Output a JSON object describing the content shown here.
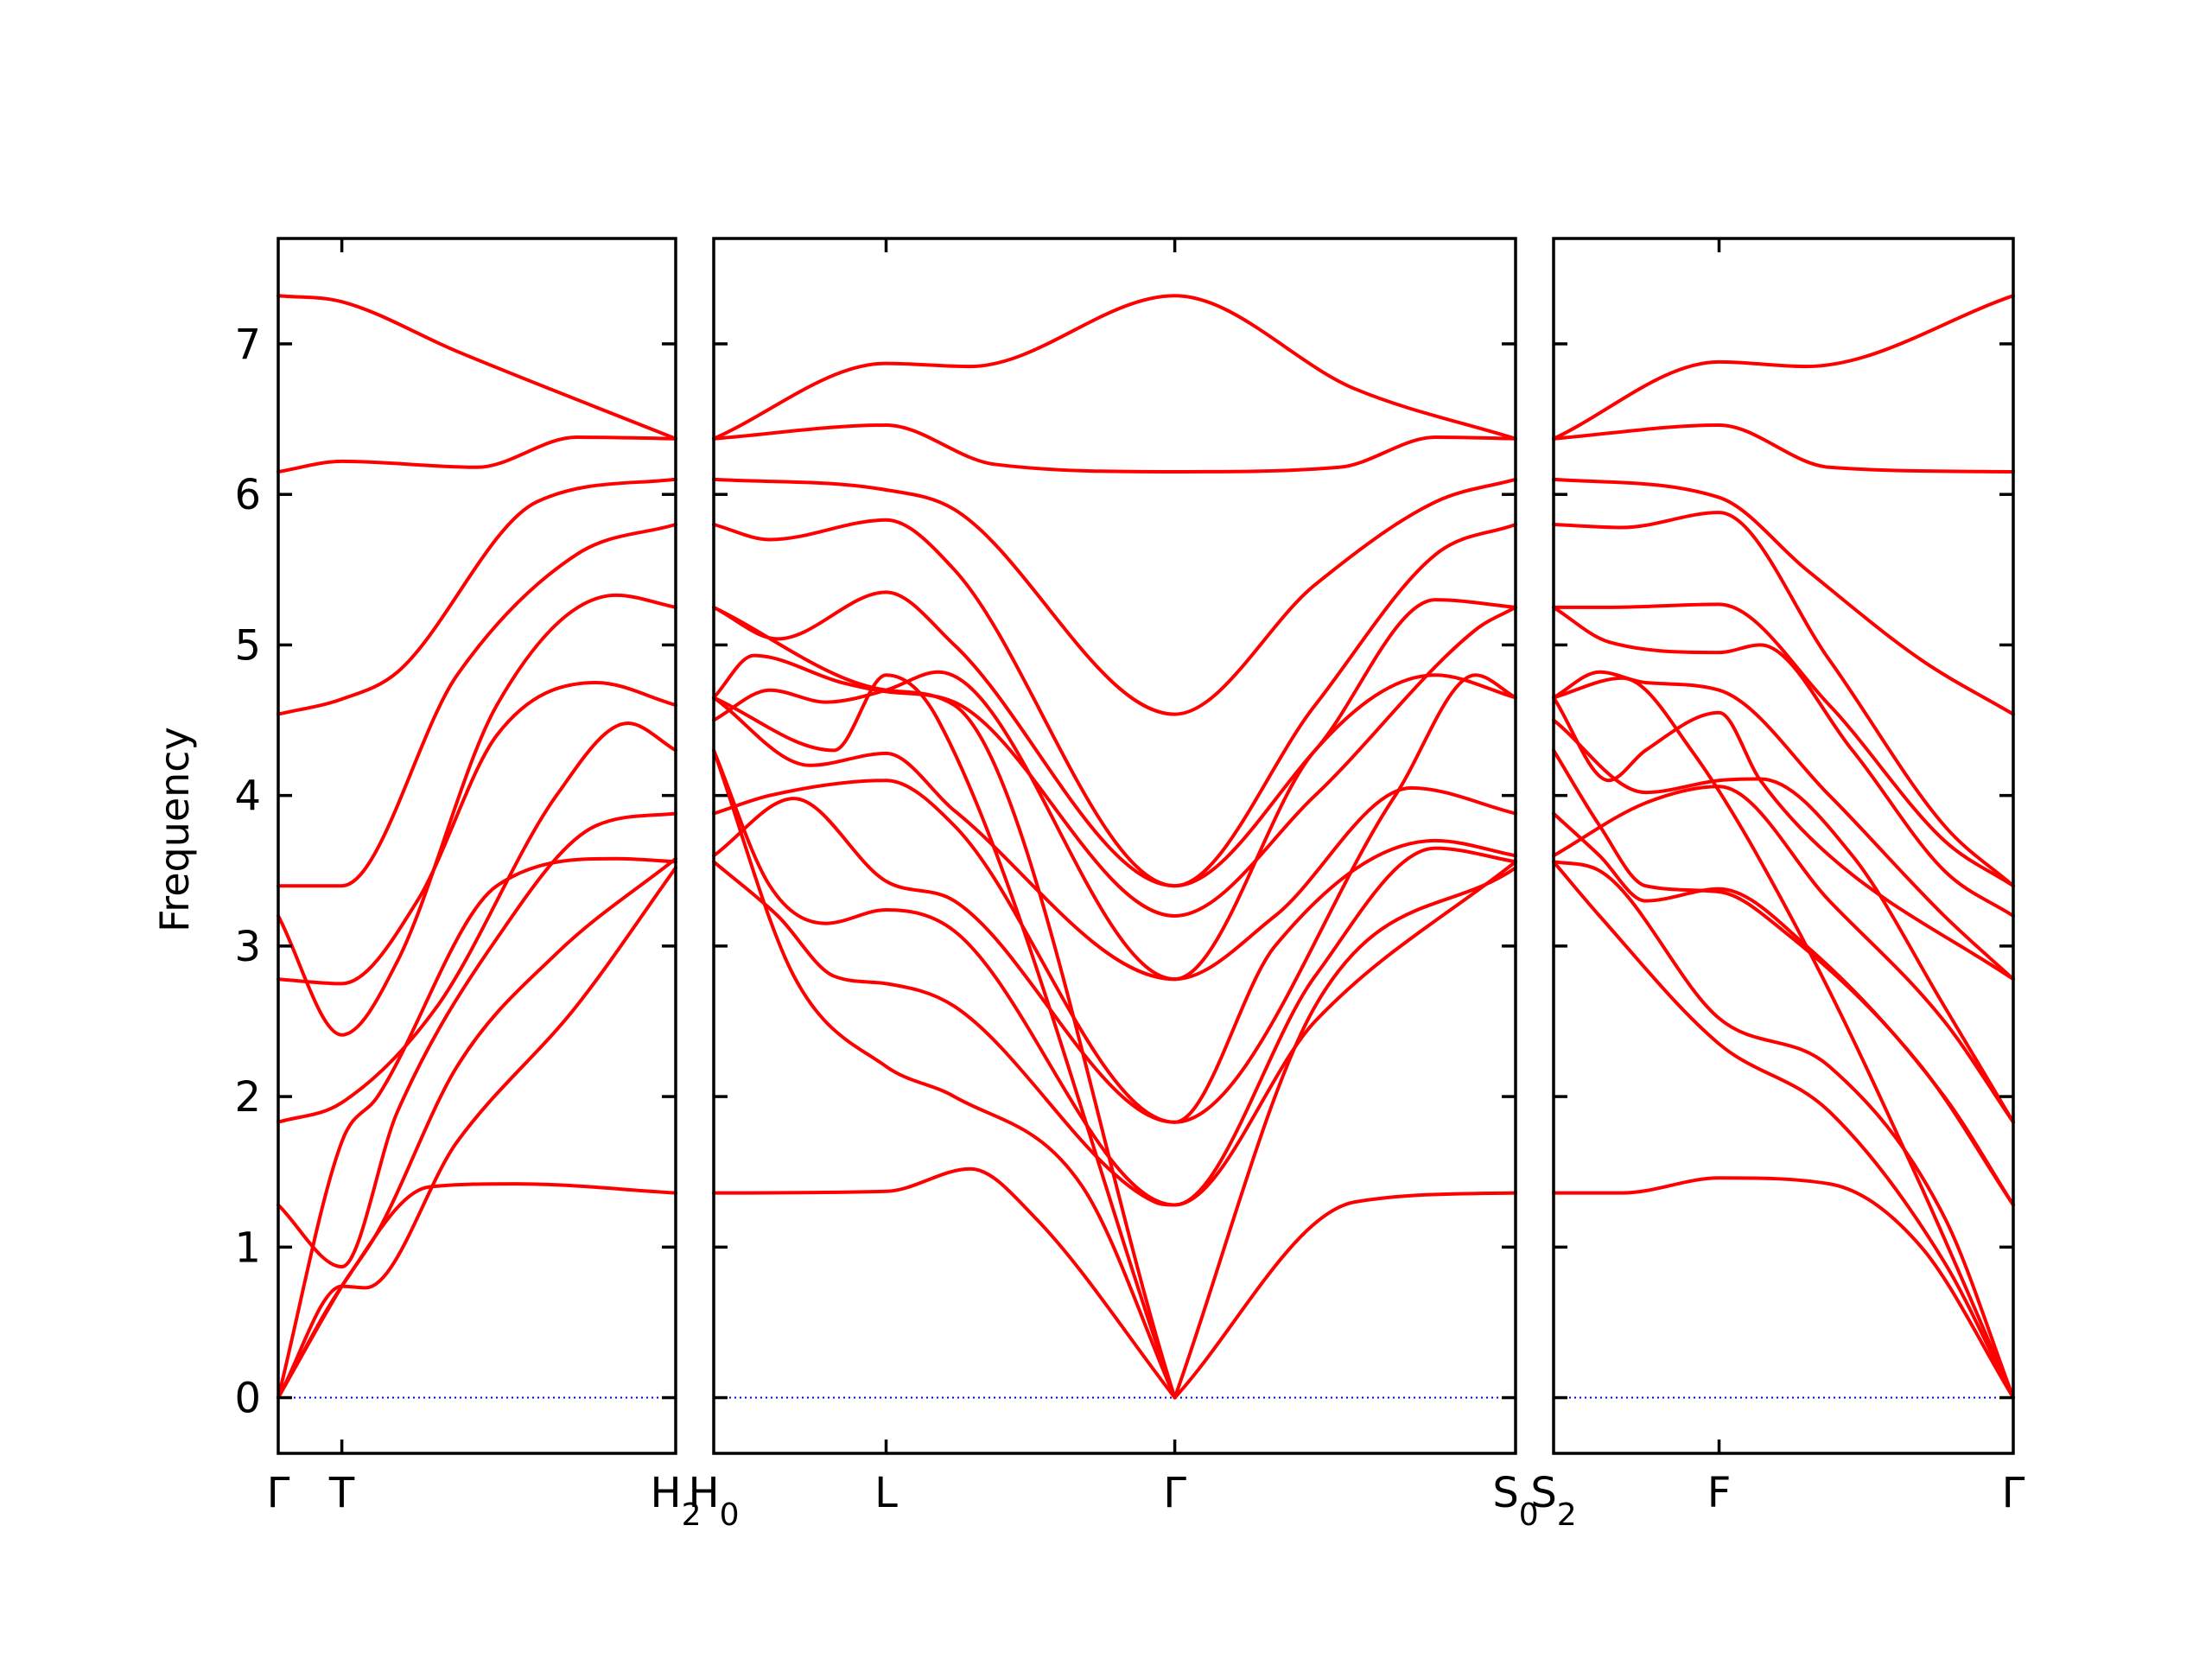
{
  "chart_data": {
    "type": "line",
    "ylabel": "Frequency",
    "ylim": [
      -0.37,
      7.7
    ],
    "yticks": [
      0,
      1,
      2,
      3,
      4,
      5,
      6,
      7
    ],
    "grid": false,
    "colors": {
      "band": "#ff0000",
      "zero_line": "#0000cc",
      "axes": "#000000"
    },
    "panels": [
      {
        "x_range": [
          0,
          1
        ],
        "ticks": [
          {
            "x": 0,
            "label": "Γ"
          },
          {
            "x": 0.16,
            "label": "T"
          },
          {
            "x": 1,
            "label": "H",
            "sub": "2"
          }
        ],
        "series": [
          {
            "x": [
              0,
              0.16,
              0.45,
              1
            ],
            "values": [
              7.32,
              7.28,
              6.95,
              6.37
            ]
          },
          {
            "x": [
              0,
              0.16,
              0.5,
              0.75,
              1
            ],
            "values": [
              6.15,
              6.22,
              6.18,
              6.38,
              6.37
            ]
          },
          {
            "x": [
              0,
              0.16,
              0.3,
              0.65,
              1
            ],
            "values": [
              4.54,
              4.64,
              4.82,
              5.95,
              6.1
            ]
          },
          {
            "x": [
              0,
              0.16,
              0.45,
              0.75,
              1
            ],
            "values": [
              3.4,
              3.4,
              4.8,
              5.6,
              5.8
            ]
          },
          {
            "x": [
              0,
              0.16,
              0.3,
              0.55,
              0.85,
              1
            ],
            "values": [
              3.2,
              2.41,
              2.9,
              4.6,
              5.33,
              5.25
            ]
          },
          {
            "x": [
              0,
              0.16,
              0.35,
              0.55,
              0.8,
              1
            ],
            "values": [
              2.78,
              2.75,
              3.3,
              4.4,
              4.75,
              4.6
            ]
          },
          {
            "x": [
              0,
              0.16,
              0.4,
              0.7,
              0.88,
              1
            ],
            "values": [
              1.83,
              1.96,
              2.6,
              4.0,
              4.48,
              4.3
            ]
          },
          {
            "x": [
              0,
              0.16,
              0.3,
              0.55,
              0.8,
              1
            ],
            "values": [
              1.28,
              0.87,
              1.9,
              3.05,
              3.8,
              3.88
            ]
          },
          {
            "x": [
              0,
              0.16,
              0.25,
              0.55,
              0.85,
              1
            ],
            "values": [
              0,
              1.7,
              2.0,
              3.4,
              3.58,
              3.56
            ]
          },
          {
            "x": [
              0,
              0.16,
              0.25,
              0.45,
              0.7,
              1
            ],
            "values": [
              0,
              0.74,
              1.1,
              2.2,
              2.95,
              3.58
            ]
          },
          {
            "x": [
              0,
              0.16,
              0.22,
              0.45,
              0.75,
              1
            ],
            "values": [
              0,
              0.74,
              0.73,
              1.7,
              2.6,
              3.52
            ]
          },
          {
            "x": [
              0,
              0.16,
              0.38,
              0.6,
              1
            ],
            "values": [
              0,
              0.74,
              1.4,
              1.42,
              1.36
            ]
          }
        ]
      },
      {
        "x_range": [
          0,
          1
        ],
        "ticks": [
          {
            "x": 0,
            "label": "H",
            "sub": "0"
          },
          {
            "x": 0.215,
            "label": "L"
          },
          {
            "x": 0.575,
            "label": "Γ"
          },
          {
            "x": 1,
            "label": "S",
            "sub": "0"
          }
        ],
        "series": [
          {
            "x": [
              0,
              0.215,
              0.32,
              0.575,
              0.8,
              1
            ],
            "values": [
              6.37,
              6.87,
              6.85,
              7.32,
              6.7,
              6.37
            ]
          },
          {
            "x": [
              0,
              0.215,
              0.35,
              0.575,
              0.78,
              0.9,
              1
            ],
            "values": [
              6.37,
              6.46,
              6.2,
              6.15,
              6.18,
              6.38,
              6.37
            ]
          },
          {
            "x": [
              0,
              0.215,
              0.3,
              0.575,
              0.75,
              0.9,
              1
            ],
            "values": [
              6.1,
              6.03,
              5.9,
              4.54,
              5.4,
              5.95,
              6.1
            ]
          },
          {
            "x": [
              0,
              0.07,
              0.215,
              0.3,
              0.575,
              0.75,
              0.9,
              1
            ],
            "values": [
              5.8,
              5.7,
              5.83,
              5.5,
              3.4,
              4.6,
              5.6,
              5.8
            ]
          },
          {
            "x": [
              0,
              0.08,
              0.215,
              0.3,
              0.575,
              0.75,
              0.9,
              1
            ],
            "values": [
              5.25,
              5.04,
              5.35,
              5.0,
              3.4,
              4.3,
              5.3,
              5.25
            ]
          },
          {
            "x": [
              0,
              0.05,
              0.16,
              0.215,
              0.3,
              0.575,
              0.75,
              0.95,
              1
            ],
            "values": [
              4.65,
              4.93,
              4.75,
              4.69,
              4.62,
              3.2,
              4.0,
              5.1,
              5.25
            ]
          },
          {
            "x": [
              0,
              0.07,
              0.14,
              0.215,
              0.28,
              0.575,
              0.75,
              0.9,
              1
            ],
            "values": [
              4.5,
              4.7,
              4.62,
              4.7,
              4.82,
              2.78,
              4.3,
              4.8,
              4.65
            ]
          },
          {
            "x": [
              0,
              0.12,
              0.215,
              0.3,
              0.575,
              0.7,
              0.87,
              1
            ],
            "values": [
              4.65,
              4.2,
              4.28,
              3.9,
              2.78,
              3.2,
              4.05,
              3.88
            ]
          },
          {
            "x": [
              0,
              0.07,
              0.215,
              0.3,
              0.575,
              0.85,
              0.95,
              1
            ],
            "values": [
              3.88,
              4.0,
              4.1,
              3.8,
              1.83,
              4.0,
              4.8,
              4.65
            ]
          },
          {
            "x": [
              0,
              0.1,
              0.215,
              0.3,
              0.575,
              0.7,
              0.9,
              1
            ],
            "values": [
              3.6,
              3.98,
              3.43,
              3.3,
              1.83,
              3.0,
              3.7,
              3.6
            ]
          },
          {
            "x": [
              0,
              0.07,
              0.14,
              0.215,
              0.3,
              0.575,
              0.75,
              0.9,
              1
            ],
            "values": [
              4.3,
              3.4,
              3.15,
              3.24,
              3.1,
              1.28,
              2.8,
              3.65,
              3.56
            ]
          },
          {
            "x": [
              0,
              0.08,
              0.15,
              0.215,
              0.3,
              0.55,
              0.575,
              0.75,
              1
            ],
            "values": [
              3.56,
              3.2,
              2.8,
              2.75,
              2.6,
              1.3,
              1.28,
              2.5,
              3.56
            ]
          },
          {
            "x": [
              0,
              0.1,
              0.215,
              0.3,
              0.46,
              0.575
            ],
            "values": [
              4.3,
              2.8,
              2.2,
              2.0,
              1.4,
              0
            ]
          },
          {
            "x": [
              0,
              0.15,
              0.215,
              0.28,
              0.575
            ],
            "values": [
              4.65,
              4.3,
              4.8,
              4.5,
              0
            ]
          },
          {
            "x": [
              0,
              0.215,
              0.3,
              0.575
            ],
            "values": [
              5.25,
              4.7,
              4.6,
              0
            ]
          },
          {
            "x": [
              0.575,
              0.75,
              1
            ],
            "values": [
              0,
              2.6,
              3.52
            ]
          },
          {
            "x": [
              0,
              0.215,
              0.32,
              0.4,
              0.575
            ],
            "values": [
              1.36,
              1.37,
              1.52,
              1.2,
              0
            ]
          },
          {
            "x": [
              0.575,
              0.8,
              1
            ],
            "values": [
              0,
              1.3,
              1.36
            ]
          }
        ]
      },
      {
        "x_range": [
          0,
          1
        ],
        "ticks": [
          {
            "x": 0,
            "label": "S",
            "sub": "2"
          },
          {
            "x": 0.36,
            "label": "F"
          },
          {
            "x": 1,
            "label": "Γ"
          }
        ],
        "series": [
          {
            "x": [
              0,
              0.36,
              0.55,
              1
            ],
            "values": [
              6.37,
              6.88,
              6.85,
              7.32
            ]
          },
          {
            "x": [
              0,
              0.36,
              0.6,
              1
            ],
            "values": [
              6.37,
              6.46,
              6.18,
              6.15
            ]
          },
          {
            "x": [
              0,
              0.36,
              0.55,
              0.8,
              1
            ],
            "values": [
              6.1,
              5.98,
              5.5,
              4.9,
              4.54
            ]
          },
          {
            "x": [
              0,
              0.15,
              0.36,
              0.6,
              0.85,
              1
            ],
            "values": [
              5.8,
              5.78,
              5.88,
              4.9,
              3.8,
              3.4
            ]
          },
          {
            "x": [
              0,
              0.12,
              0.36,
              0.6,
              0.85,
              1
            ],
            "values": [
              5.25,
              5.25,
              5.27,
              4.6,
              3.7,
              3.4
            ]
          },
          {
            "x": [
              0,
              0.12,
              0.36,
              0.45,
              0.65,
              0.85,
              1
            ],
            "values": [
              5.25,
              5.02,
              4.95,
              5.0,
              4.3,
              3.5,
              3.2
            ]
          },
          {
            "x": [
              0,
              0.1,
              0.2,
              0.36,
              0.6,
              0.85,
              1
            ],
            "values": [
              4.65,
              4.82,
              4.75,
              4.7,
              4.0,
              3.2,
              2.78
            ]
          },
          {
            "x": [
              0,
              0.12,
              0.2,
              0.36,
              0.45,
              0.6,
              1
            ],
            "values": [
              4.65,
              4.1,
              4.3,
              4.55,
              4.1,
              3.6,
              2.78
            ]
          },
          {
            "x": [
              0,
              0.2,
              0.36,
              0.45,
              0.65,
              0.85,
              1
            ],
            "values": [
              4.5,
              4.02,
              4.1,
              4.11,
              3.6,
              2.6,
              1.83
            ]
          },
          {
            "x": [
              0,
              0.2,
              0.36,
              0.6,
              0.85,
              1
            ],
            "values": [
              3.6,
              3.95,
              4.06,
              3.3,
              2.5,
              1.83
            ]
          },
          {
            "x": [
              0,
              0.1,
              0.2,
              0.36,
              0.55,
              0.85,
              1
            ],
            "values": [
              3.88,
              3.6,
              3.3,
              3.38,
              3.0,
              2.0,
              1.28
            ]
          },
          {
            "x": [
              0,
              0.1,
              0.2,
              0.36,
              0.5,
              0.8,
              1
            ],
            "values": [
              4.3,
              3.8,
              3.4,
              3.36,
              3.1,
              2.2,
              1.28
            ]
          },
          {
            "x": [
              0,
              0.1,
              0.36,
              0.6,
              0.85,
              1
            ],
            "values": [
              3.56,
              3.5,
              2.52,
              2.2,
              1.2,
              0
            ]
          },
          {
            "x": [
              0,
              0.1,
              0.36,
              0.6,
              0.85,
              1
            ],
            "values": [
              3.56,
              3.2,
              2.35,
              1.9,
              0.9,
              0
            ]
          },
          {
            "x": [
              0,
              0.15,
              0.3,
              0.55,
              0.8,
              1
            ],
            "values": [
              4.65,
              4.78,
              4.3,
              3.0,
              1.4,
              0
            ]
          },
          {
            "x": [
              0,
              0.15,
              0.36,
              0.6,
              0.8,
              1
            ],
            "values": [
              1.36,
              1.36,
              1.46,
              1.42,
              1.0,
              0
            ]
          }
        ]
      }
    ]
  }
}
